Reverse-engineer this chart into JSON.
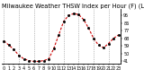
{
  "title": "Milwaukee Weather THSW Index per Hour (F) (Last 24 Hours)",
  "hours": [
    0,
    1,
    2,
    3,
    4,
    5,
    6,
    7,
    8,
    9,
    10,
    11,
    12,
    13,
    14,
    15,
    16,
    17,
    18,
    19,
    20,
    21,
    22,
    23
  ],
  "values": [
    65,
    60,
    55,
    48,
    44,
    42,
    41,
    41,
    42,
    44,
    56,
    72,
    88,
    95,
    97,
    96,
    90,
    80,
    68,
    60,
    57,
    62,
    68,
    72
  ],
  "line_color": "#cc0000",
  "marker_color": "#000000",
  "bg_color": "#ffffff",
  "grid_color": "#888888",
  "title_color": "#000000",
  "ylim_min": 38,
  "ylim_max": 102,
  "yticks": [
    41,
    50,
    59,
    68,
    77,
    86,
    95
  ],
  "ytick_labels": [
    "41",
    "50",
    "59",
    "68",
    "77",
    "86",
    "95"
  ],
  "xticks": [
    0,
    1,
    2,
    3,
    4,
    5,
    6,
    7,
    8,
    9,
    10,
    11,
    12,
    13,
    14,
    15,
    16,
    17,
    18,
    19,
    20,
    21,
    22,
    23
  ],
  "grid_xticks": [
    0,
    3,
    6,
    9,
    12,
    15,
    18,
    21
  ],
  "title_fontsize": 4.8,
  "tick_fontsize": 3.5
}
